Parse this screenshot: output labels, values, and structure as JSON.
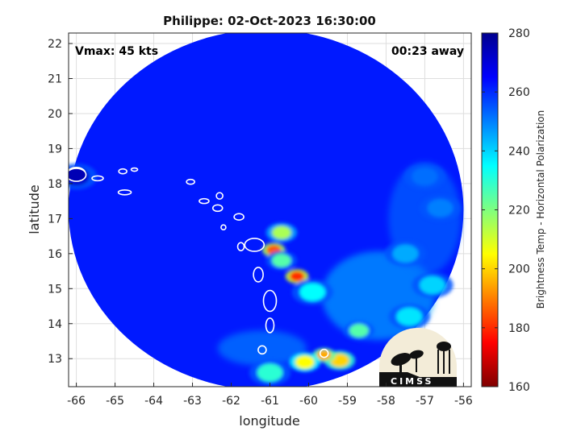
{
  "chart_data": {
    "type": "heatmap",
    "title": "Philippe: 02-Oct-2023 16:30:00",
    "xlabel": "longitude",
    "ylabel": "latitude",
    "xlim": [
      -66.2,
      -55.8
    ],
    "ylim": [
      12.2,
      22.3
    ],
    "xticks": [
      -66,
      -65,
      -64,
      -63,
      -62,
      -61,
      -60,
      -59,
      -58,
      -57,
      -56
    ],
    "yticks": [
      13,
      14,
      15,
      16,
      17,
      18,
      19,
      20,
      21,
      22
    ],
    "grid": true,
    "annotations": {
      "vmax": "Vmax: 45 kts",
      "away": "00:23 away"
    },
    "colorbar": {
      "label": "Brightness Temp - Horizontal Polarization",
      "range": [
        160,
        280
      ],
      "ticks": [
        160,
        180,
        200,
        220,
        240,
        260,
        280
      ],
      "colors": [
        "#7f0000",
        "#ff0000",
        "#ff7f00",
        "#ffff00",
        "#7fff7f",
        "#00ffff",
        "#007fff",
        "#0000ff",
        "#00008f"
      ]
    },
    "swath": {
      "center": [
        -61.1,
        17.25
      ],
      "radius_lon": 5.1,
      "radius_lat": 5.15,
      "background_value": 262
    },
    "cells": [
      {
        "lon": -60.7,
        "lat": 16.6,
        "value": 215
      },
      {
        "lon": -60.9,
        "lat": 16.1,
        "value": 185
      },
      {
        "lon": -60.3,
        "lat": 15.35,
        "value": 180
      },
      {
        "lon": -60.7,
        "lat": 15.8,
        "value": 225
      },
      {
        "lon": -59.9,
        "lat": 14.9,
        "value": 235
      },
      {
        "lon": -59.2,
        "lat": 12.95,
        "value": 200
      },
      {
        "lon": -59.6,
        "lat": 13.1,
        "value": 195
      },
      {
        "lon": -60.1,
        "lat": 12.9,
        "value": 205
      },
      {
        "lon": -58.7,
        "lat": 13.8,
        "value": 225
      },
      {
        "lon": -57.4,
        "lat": 14.2,
        "value": 238
      },
      {
        "lon": -56.8,
        "lat": 15.1,
        "value": 240
      },
      {
        "lon": -57.5,
        "lat": 16.0,
        "value": 245
      },
      {
        "lon": -56.6,
        "lat": 17.3,
        "value": 250
      },
      {
        "lon": -57.0,
        "lat": 18.2,
        "value": 252
      },
      {
        "lon": -61.0,
        "lat": 12.6,
        "value": 230
      },
      {
        "lon": -66.0,
        "lat": 18.2,
        "value": 272
      }
    ],
    "logo": "CIMSS"
  }
}
